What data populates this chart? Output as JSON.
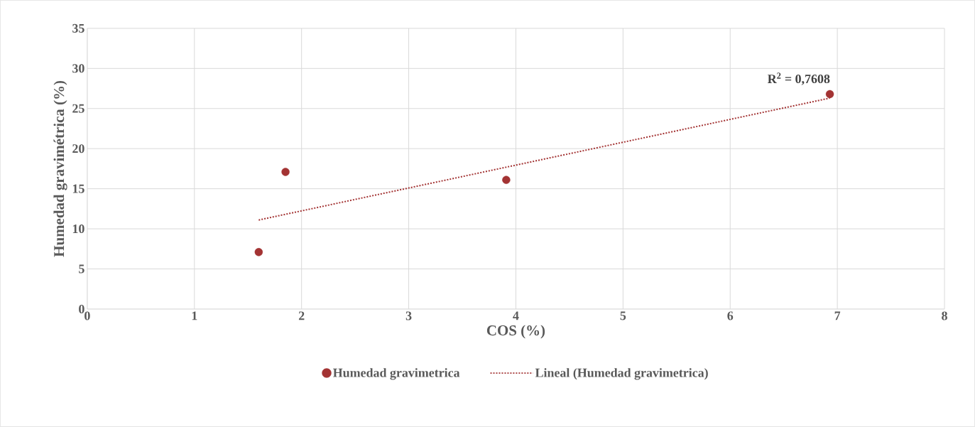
{
  "chart_data": {
    "type": "scatter",
    "xlabel": "COS (%)",
    "ylabel": "Humedad gravimétrica (%)",
    "xlim": [
      0,
      8
    ],
    "ylim": [
      0,
      35
    ],
    "xticks": [
      0,
      1,
      2,
      3,
      4,
      5,
      6,
      7,
      8
    ],
    "yticks": [
      0,
      5,
      10,
      15,
      20,
      25,
      30,
      35
    ],
    "grid": true,
    "legend": "bottom",
    "series": [
      {
        "name": "Humedad gravimetrica",
        "color": "#a33333",
        "marker": "circle",
        "x": [
          1.6,
          1.85,
          3.91,
          6.93
        ],
        "values": [
          7.1,
          17.1,
          16.1,
          26.8
        ]
      },
      {
        "name": "Lineal (Humedad gravimetrica)",
        "type": "line",
        "color": "#a33333",
        "line_style": "dotted",
        "marker": "none",
        "x": [
          1.6,
          6.93
        ],
        "values": [
          11.1,
          26.3
        ]
      }
    ],
    "annotations": [
      "R$^{2}$ = 0,7608"
    ]
  }
}
